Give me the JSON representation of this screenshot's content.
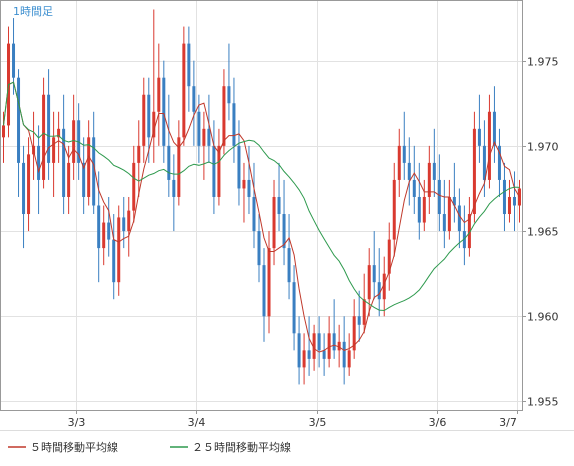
{
  "chart_data": {
    "type": "candlestick",
    "timeframe_label": "1時間足",
    "x_ticks": [
      "3/3",
      "3/4",
      "3/5",
      "3/6",
      "3/7"
    ],
    "y_ticks": [
      "1.975",
      "1.970",
      "1.965",
      "1.960",
      "1.955"
    ],
    "ylim": [
      1.9545,
      1.9785
    ],
    "grid": true,
    "legend_position": "bottom",
    "colors": {
      "up": "#d9392f",
      "down": "#3a7fc1",
      "ma5": "#c0392b",
      "ma25": "#2e9a4e",
      "grid": "#e2e2e2",
      "axis": "#999999"
    },
    "series": [
      {
        "name": "５時間移動平均線",
        "color": "#c0392b",
        "period": 5
      },
      {
        "name": "２５時間移動平均線",
        "color": "#2e9a4e",
        "period": 25
      }
    ],
    "candles": [
      [
        1.9705,
        1.972,
        1.969,
        1.9712
      ],
      [
        1.9712,
        1.977,
        1.9705,
        1.976
      ],
      [
        1.976,
        1.9775,
        1.973,
        1.974
      ],
      [
        1.974,
        1.9745,
        1.967,
        1.969
      ],
      [
        1.969,
        1.97,
        1.964,
        1.966
      ],
      [
        1.966,
        1.9705,
        1.965,
        1.9695
      ],
      [
        1.9695,
        1.972,
        1.968,
        1.97
      ],
      [
        1.97,
        1.9712,
        1.966,
        1.968
      ],
      [
        1.968,
        1.974,
        1.9675,
        1.973
      ],
      [
        1.973,
        1.9745,
        1.968,
        1.969
      ],
      [
        1.969,
        1.972,
        1.967,
        1.9705
      ],
      [
        1.9705,
        1.972,
        1.969,
        1.971
      ],
      [
        1.971,
        1.973,
        1.966,
        1.967
      ],
      [
        1.967,
        1.97,
        1.966,
        1.969
      ],
      [
        1.969,
        1.973,
        1.968,
        1.9715
      ],
      [
        1.9715,
        1.9725,
        1.968,
        1.969
      ],
      [
        1.969,
        1.9705,
        1.966,
        1.967
      ],
      [
        1.967,
        1.9715,
        1.9665,
        1.9705
      ],
      [
        1.9705,
        1.972,
        1.966,
        1.9665
      ],
      [
        1.9665,
        1.9685,
        1.962,
        1.964
      ],
      [
        1.964,
        1.9665,
        1.963,
        1.9655
      ],
      [
        1.9655,
        1.967,
        1.9635,
        1.9645
      ],
      [
        1.9645,
        1.966,
        1.961,
        1.962
      ],
      [
        1.962,
        1.9665,
        1.9612,
        1.9658
      ],
      [
        1.9658,
        1.967,
        1.964,
        1.965
      ],
      [
        1.965,
        1.967,
        1.9635,
        1.9662
      ],
      [
        1.9662,
        1.97,
        1.9655,
        1.969
      ],
      [
        1.969,
        1.9715,
        1.967,
        1.97
      ],
      [
        1.97,
        1.974,
        1.969,
        1.973
      ],
      [
        1.973,
        1.974,
        1.969,
        1.9705
      ],
      [
        1.9705,
        1.978,
        1.969,
        1.972
      ],
      [
        1.972,
        1.976,
        1.97,
        1.974
      ],
      [
        1.974,
        1.975,
        1.969,
        1.97
      ],
      [
        1.97,
        1.973,
        1.967,
        1.968
      ],
      [
        1.968,
        1.9695,
        1.965,
        1.967
      ],
      [
        1.967,
        1.9715,
        1.9665,
        1.9705
      ],
      [
        1.9705,
        1.977,
        1.97,
        1.976
      ],
      [
        1.976,
        1.977,
        1.972,
        1.9735
      ],
      [
        1.9735,
        1.975,
        1.97,
        1.972
      ],
      [
        1.972,
        1.973,
        1.969,
        1.97
      ],
      [
        1.97,
        1.972,
        1.968,
        1.971
      ],
      [
        1.971,
        1.973,
        1.969,
        1.97
      ],
      [
        1.97,
        1.9715,
        1.966,
        1.967
      ],
      [
        1.967,
        1.971,
        1.9665,
        1.97
      ],
      [
        1.97,
        1.9745,
        1.9695,
        1.9735
      ],
      [
        1.9735,
        1.976,
        1.9715,
        1.9725
      ],
      [
        1.9725,
        1.974,
        1.969,
        1.97
      ],
      [
        1.97,
        1.9715,
        1.9665,
        1.9675
      ],
      [
        1.9675,
        1.969,
        1.9655,
        1.968
      ],
      [
        1.968,
        1.97,
        1.966,
        1.967
      ],
      [
        1.967,
        1.969,
        1.964,
        1.965
      ],
      [
        1.965,
        1.966,
        1.962,
        1.963
      ],
      [
        1.963,
        1.964,
        1.9585,
        1.96
      ],
      [
        1.96,
        1.965,
        1.959,
        1.964
      ],
      [
        1.964,
        1.968,
        1.963,
        1.967
      ],
      [
        1.967,
        1.969,
        1.965,
        1.966
      ],
      [
        1.966,
        1.968,
        1.963,
        1.964
      ],
      [
        1.964,
        1.966,
        1.961,
        1.962
      ],
      [
        1.962,
        1.963,
        1.958,
        1.959
      ],
      [
        1.959,
        1.96,
        1.956,
        1.957
      ],
      [
        1.957,
        1.959,
        1.956,
        1.958
      ],
      [
        1.958,
        1.96,
        1.9565,
        1.9575
      ],
      [
        1.9575,
        1.9595,
        1.9568,
        1.959
      ],
      [
        1.959,
        1.96,
        1.957,
        1.958
      ],
      [
        1.958,
        1.959,
        1.9565,
        1.9575
      ],
      [
        1.9575,
        1.96,
        1.957,
        1.959
      ],
      [
        1.959,
        1.961,
        1.9575,
        1.958
      ],
      [
        1.958,
        1.9595,
        1.957,
        1.9585
      ],
      [
        1.9585,
        1.96,
        1.956,
        1.957
      ],
      [
        1.957,
        1.959,
        1.9565,
        1.958
      ],
      [
        1.958,
        1.961,
        1.9575,
        1.96
      ],
      [
        1.96,
        1.9615,
        1.9585,
        1.9595
      ],
      [
        1.9595,
        1.9625,
        1.959,
        1.961
      ],
      [
        1.961,
        1.964,
        1.96,
        1.963
      ],
      [
        1.963,
        1.965,
        1.961,
        1.962
      ],
      [
        1.962,
        1.964,
        1.96,
        1.961
      ],
      [
        1.961,
        1.9635,
        1.96,
        1.9625
      ],
      [
        1.9625,
        1.9655,
        1.9615,
        1.9645
      ],
      [
        1.9645,
        1.969,
        1.9635,
        1.968
      ],
      [
        1.968,
        1.971,
        1.967,
        1.97
      ],
      [
        1.97,
        1.972,
        1.968,
        1.969
      ],
      [
        1.969,
        1.9705,
        1.9665,
        1.968
      ],
      [
        1.968,
        1.97,
        1.966,
        1.967
      ],
      [
        1.967,
        1.969,
        1.9645,
        1.9655
      ],
      [
        1.9655,
        1.968,
        1.965,
        1.967
      ],
      [
        1.967,
        1.97,
        1.966,
        1.969
      ],
      [
        1.969,
        1.971,
        1.967,
        1.968
      ],
      [
        1.968,
        1.9695,
        1.965,
        1.966
      ],
      [
        1.966,
        1.968,
        1.964,
        1.965
      ],
      [
        1.965,
        1.968,
        1.9645,
        1.967
      ],
      [
        1.967,
        1.969,
        1.9655,
        1.9665
      ],
      [
        1.9665,
        1.9675,
        1.964,
        1.965
      ],
      [
        1.965,
        1.9665,
        1.963,
        1.964
      ],
      [
        1.964,
        1.967,
        1.9635,
        1.966
      ],
      [
        1.966,
        1.972,
        1.9655,
        1.971
      ],
      [
        1.971,
        1.973,
        1.969,
        1.97
      ],
      [
        1.97,
        1.9715,
        1.967,
        1.968
      ],
      [
        1.968,
        1.973,
        1.9675,
        1.972
      ],
      [
        1.972,
        1.9735,
        1.969,
        1.97
      ],
      [
        1.97,
        1.971,
        1.967,
        1.968
      ],
      [
        1.968,
        1.969,
        1.965,
        1.966
      ],
      [
        1.966,
        1.968,
        1.9655,
        1.967
      ],
      [
        1.967,
        1.9685,
        1.965,
        1.9665
      ],
      [
        1.9665,
        1.968,
        1.9655,
        1.9675
      ]
    ]
  }
}
